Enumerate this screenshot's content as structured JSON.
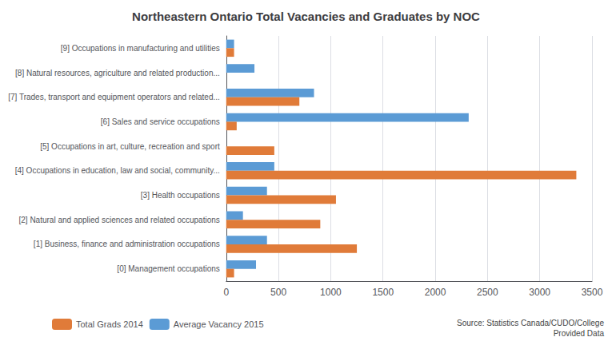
{
  "chart_data": {
    "type": "bar",
    "orientation": "horizontal",
    "title": "Northeastern Ontario Total Vacancies and Graduates by NOC",
    "categories": [
      "[0] Management occupations",
      "[1] Business, finance and administration occupations",
      "[2] Natural and applied sciences and related occupations",
      "[3] Health occupations",
      "[4] Occupations in education, law and social, community...",
      "[5] Occupations in art, culture, recreation and sport",
      "[6] Sales and service occupations",
      "[7] Trades, transport and equipment operators and related...",
      "[8] Natural resources, agriculture and related production...",
      "[9] Occupations in manufacturing and utilities"
    ],
    "series": [
      {
        "name": "Total Grads 2014",
        "color": "#e07b39",
        "values": [
          75,
          1250,
          900,
          1050,
          3350,
          460,
          100,
          700,
          0,
          75
        ]
      },
      {
        "name": "Average Vacancy 2015",
        "color": "#5b9bd5",
        "values": [
          285,
          390,
          160,
          390,
          460,
          0,
          2320,
          840,
          270,
          75
        ]
      }
    ],
    "xlim": [
      0,
      3500
    ],
    "xticks": [
      0,
      500,
      1000,
      1500,
      2000,
      2500,
      3000,
      3500
    ],
    "grid": true,
    "legend": "bottom",
    "annotations": [
      "Source: Statistics Canada/CUDO/College\nProvided Data"
    ]
  }
}
